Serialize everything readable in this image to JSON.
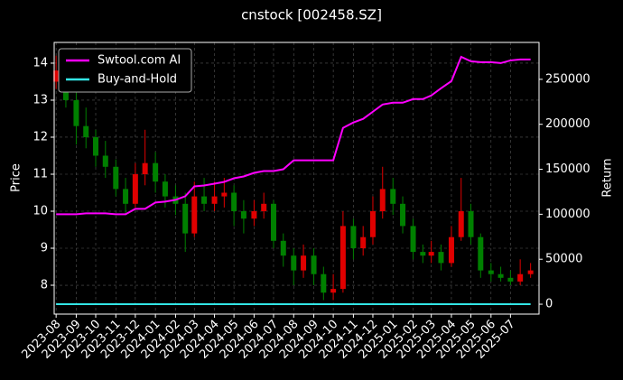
{
  "chart_data": {
    "type": "candlestick",
    "title": "cnstock [002458.SZ]",
    "ylabel": "Price",
    "y2label": "Return",
    "x": [
      "2023-08-01",
      "2023-08-16",
      "2023-09-01",
      "2023-09-16",
      "2023-10-01",
      "2023-10-16",
      "2023-11-01",
      "2023-11-16",
      "2023-12-01",
      "2023-12-16",
      "2024-01-01",
      "2024-01-16",
      "2024-02-01",
      "2024-02-16",
      "2024-03-01",
      "2024-03-16",
      "2024-04-01",
      "2024-04-16",
      "2024-05-01",
      "2024-05-16",
      "2024-06-01",
      "2024-06-16",
      "2024-07-01",
      "2024-07-16",
      "2024-08-01",
      "2024-08-16",
      "2024-09-01",
      "2024-09-16",
      "2024-10-01",
      "2024-10-16",
      "2024-11-01",
      "2024-11-16",
      "2024-12-01",
      "2024-12-16",
      "2025-01-01",
      "2025-01-16",
      "2025-02-01",
      "2025-02-16",
      "2025-03-01",
      "2025-03-16",
      "2025-04-01",
      "2025-04-16",
      "2025-05-01",
      "2025-05-16",
      "2025-06-01",
      "2025-06-16",
      "2025-07-01",
      "2025-07-16",
      "2025-08-01"
    ],
    "open": [
      13.5,
      13.8,
      13.0,
      12.3,
      12.0,
      11.5,
      11.2,
      10.6,
      10.2,
      11.0,
      11.3,
      10.8,
      10.4,
      10.2,
      9.4,
      10.4,
      10.2,
      10.4,
      10.5,
      10.0,
      9.8,
      10.0,
      10.2,
      9.2,
      8.8,
      8.4,
      8.8,
      8.3,
      7.8,
      7.9,
      9.6,
      9.0,
      9.3,
      10.0,
      10.6,
      10.2,
      9.6,
      8.9,
      8.8,
      8.9,
      8.6,
      9.3,
      10.0,
      9.3,
      8.4,
      8.3,
      8.2,
      8.1,
      8.3
    ],
    "high": [
      14.2,
      14.0,
      13.2,
      12.8,
      12.2,
      11.9,
      11.4,
      10.9,
      11.3,
      12.2,
      11.6,
      11.0,
      10.7,
      10.5,
      10.8,
      10.9,
      10.8,
      10.9,
      10.7,
      10.3,
      10.3,
      10.5,
      10.3,
      9.4,
      9.0,
      9.1,
      9.0,
      8.5,
      8.3,
      10.0,
      9.8,
      9.6,
      10.4,
      11.2,
      10.9,
      10.4,
      9.8,
      9.1,
      9.2,
      9.1,
      9.6,
      10.9,
      10.2,
      9.4,
      8.6,
      8.5,
      8.4,
      8.7,
      8.6
    ],
    "low": [
      13.3,
      12.8,
      11.8,
      11.7,
      11.2,
      10.9,
      10.4,
      9.9,
      10.1,
      10.7,
      10.5,
      10.1,
      9.9,
      8.9,
      9.3,
      10.0,
      10.0,
      10.1,
      9.6,
      9.4,
      9.6,
      9.8,
      9.0,
      8.5,
      8.0,
      8.2,
      8.0,
      7.6,
      7.6,
      7.8,
      8.7,
      8.8,
      9.1,
      9.8,
      9.9,
      9.4,
      8.7,
      8.6,
      8.6,
      8.4,
      8.5,
      9.2,
      9.1,
      8.2,
      8.1,
      8.1,
      8.0,
      8.0,
      8.2
    ],
    "close": [
      13.8,
      13.0,
      12.3,
      12.0,
      11.5,
      11.2,
      10.6,
      10.2,
      11.0,
      11.3,
      10.8,
      10.4,
      10.2,
      9.4,
      10.4,
      10.2,
      10.4,
      10.5,
      10.0,
      9.8,
      10.0,
      10.2,
      9.2,
      8.8,
      8.4,
      8.8,
      8.3,
      7.8,
      7.9,
      9.6,
      9.0,
      9.3,
      10.0,
      10.6,
      10.2,
      9.6,
      8.9,
      8.8,
      8.9,
      8.6,
      9.3,
      10.0,
      9.3,
      8.4,
      8.3,
      8.2,
      8.1,
      8.3,
      8.4
    ],
    "up_color": "#e00000",
    "down_color": "#008000",
    "series": [
      {
        "name": "Swtool.com AI",
        "color": "#ff00ff",
        "axis": "y2",
        "values": [
          100000,
          100000,
          100000,
          101000,
          101000,
          101000,
          100000,
          100000,
          106000,
          106000,
          113000,
          114000,
          116000,
          120000,
          131000,
          132000,
          134000,
          136000,
          140000,
          142000,
          146000,
          148000,
          148000,
          150000,
          160000,
          160000,
          160000,
          160000,
          160000,
          196000,
          202000,
          206000,
          214000,
          222000,
          224000,
          224000,
          228000,
          228000,
          232000,
          240000,
          248000,
          275000,
          270000,
          269000,
          269000,
          268000,
          271000,
          272000,
          272000
        ]
      },
      {
        "name": "Buy-and-Hold",
        "color": "#33e6e6",
        "axis": "y2",
        "values": [
          0,
          0,
          0,
          0,
          0,
          0,
          0,
          0,
          0,
          0,
          0,
          0,
          0,
          0,
          0,
          0,
          0,
          0,
          0,
          0,
          0,
          0,
          0,
          0,
          0,
          0,
          0,
          0,
          0,
          0,
          0,
          0,
          0,
          0,
          0,
          0,
          0,
          0,
          0,
          0,
          0,
          0,
          0,
          0,
          0,
          0,
          0,
          0,
          0
        ]
      }
    ],
    "xlim": [
      "2023-07-29",
      "2025-08-14"
    ],
    "xticks": [
      "2023-08",
      "2023-09",
      "2023-10",
      "2023-11",
      "2023-12",
      "2024-01",
      "2024-02",
      "2024-03",
      "2024-04",
      "2024-05",
      "2024-06",
      "2024-07",
      "2024-08",
      "2024-09",
      "2024-10",
      "2024-11",
      "2024-12",
      "2025-01",
      "2025-02",
      "2025-03",
      "2025-04",
      "2025-05",
      "2025-06",
      "2025-07"
    ],
    "ylim": [
      7.22,
      14.56
    ],
    "yticks": [
      8,
      9,
      10,
      11,
      12,
      13,
      14
    ],
    "y2lim": [
      -11000,
      291000
    ],
    "y2ticks": [
      0,
      50000,
      100000,
      150000,
      200000,
      250000
    ],
    "grid": true,
    "legend": "upper left"
  }
}
